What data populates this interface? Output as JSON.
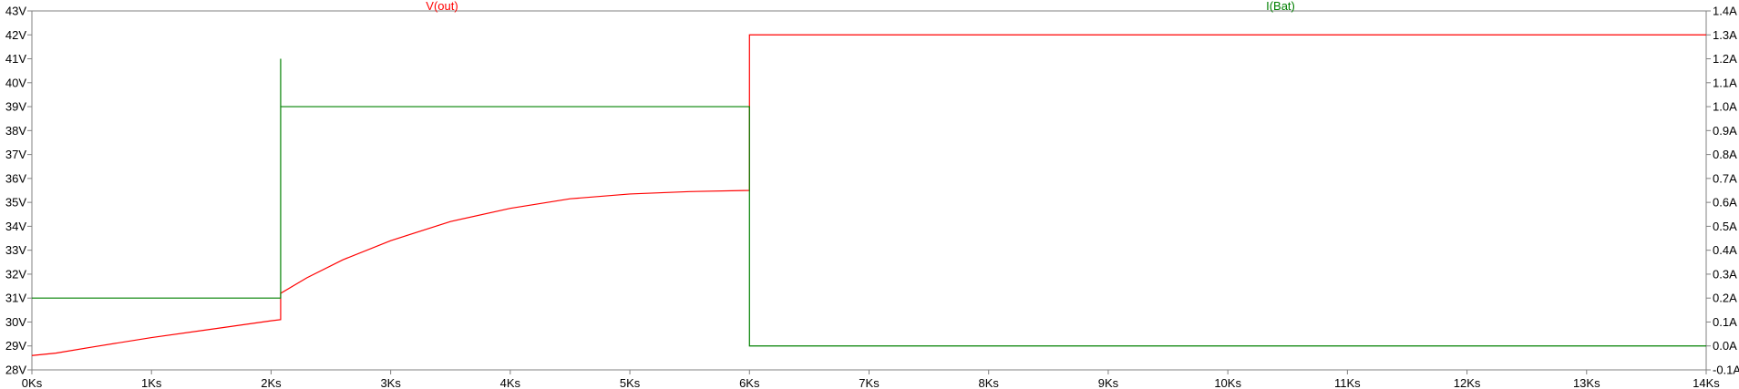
{
  "chart_data": {
    "type": "line",
    "title": "",
    "x_axis": {
      "label": "",
      "range": [
        0,
        14
      ],
      "ticks": [
        0,
        1,
        2,
        3,
        4,
        5,
        6,
        7,
        8,
        9,
        10,
        11,
        12,
        13,
        14
      ],
      "tick_labels": [
        "0Ks",
        "1Ks",
        "2Ks",
        "3Ks",
        "4Ks",
        "5Ks",
        "6Ks",
        "7Ks",
        "8Ks",
        "9Ks",
        "10Ks",
        "11Ks",
        "12Ks",
        "13Ks",
        "14Ks"
      ]
    },
    "y_left_axis": {
      "label": "",
      "range": [
        28,
        43
      ],
      "ticks": [
        28,
        29,
        30,
        31,
        32,
        33,
        34,
        35,
        36,
        37,
        38,
        39,
        40,
        41,
        42,
        43
      ],
      "tick_labels": [
        "28V",
        "29V",
        "30V",
        "31V",
        "32V",
        "33V",
        "34V",
        "35V",
        "36V",
        "37V",
        "38V",
        "39V",
        "40V",
        "41V",
        "42V",
        "43V"
      ]
    },
    "y_right_axis": {
      "label": "",
      "range": [
        -0.1,
        1.4
      ],
      "ticks": [
        -0.1,
        0.0,
        0.1,
        0.2,
        0.3,
        0.4,
        0.5,
        0.6,
        0.7,
        0.8,
        0.9,
        1.0,
        1.1,
        1.2,
        1.3,
        1.4
      ],
      "tick_labels": [
        "-0.1A",
        "0.0A",
        "0.1A",
        "0.2A",
        "0.3A",
        "0.4A",
        "0.5A",
        "0.6A",
        "0.7A",
        "0.8A",
        "0.9A",
        "1.0A",
        "1.1A",
        "1.2A",
        "1.3A",
        "1.4A"
      ]
    },
    "grid": false,
    "series": [
      {
        "name": "V(out)",
        "axis": "left",
        "color": "#ff0000",
        "points": [
          [
            0.0,
            28.6
          ],
          [
            0.2,
            28.7
          ],
          [
            0.5,
            28.95
          ],
          [
            1.0,
            29.35
          ],
          [
            1.5,
            29.7
          ],
          [
            2.0,
            30.05
          ],
          [
            2.08,
            30.1
          ],
          [
            2.08,
            31.2
          ],
          [
            2.3,
            31.85
          ],
          [
            2.6,
            32.6
          ],
          [
            3.0,
            33.4
          ],
          [
            3.5,
            34.2
          ],
          [
            4.0,
            34.75
          ],
          [
            4.5,
            35.15
          ],
          [
            5.0,
            35.35
          ],
          [
            5.5,
            35.45
          ],
          [
            6.0,
            35.5
          ],
          [
            6.0,
            42.0
          ],
          [
            6.05,
            42.0
          ],
          [
            14.0,
            42.0
          ]
        ]
      },
      {
        "name": "I(Bat)",
        "axis": "right",
        "color": "#008000",
        "points": [
          [
            0.0,
            0.2
          ],
          [
            2.08,
            0.2
          ],
          [
            2.08,
            1.2
          ],
          [
            2.08,
            1.0
          ],
          [
            6.0,
            1.0
          ],
          [
            6.0,
            0.0
          ],
          [
            14.0,
            0.0
          ]
        ]
      }
    ]
  }
}
